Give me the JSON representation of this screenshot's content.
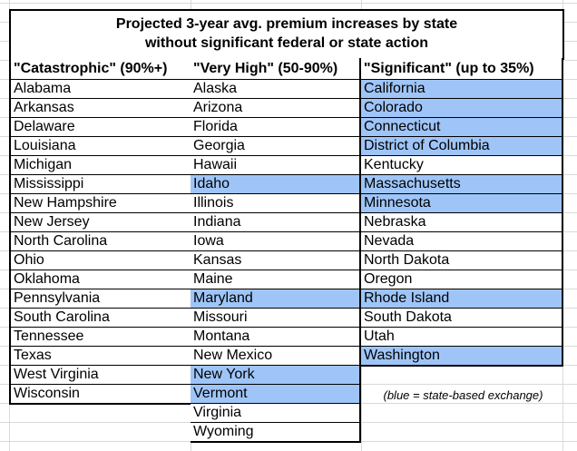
{
  "title_line1": "Projected 3-year avg. premium increases by state",
  "title_line2": "without significant federal or state action",
  "highlight_color": "#9fc5f8",
  "columns": [
    {
      "header": "\"Catastrophic\" (90%+)",
      "states": [
        {
          "name": "Alabama",
          "blue": false
        },
        {
          "name": "Arkansas",
          "blue": false
        },
        {
          "name": "Delaware",
          "blue": false
        },
        {
          "name": "Louisiana",
          "blue": false
        },
        {
          "name": "Michigan",
          "blue": false
        },
        {
          "name": "Mississippi",
          "blue": false
        },
        {
          "name": "New Hampshire",
          "blue": false
        },
        {
          "name": "New Jersey",
          "blue": false
        },
        {
          "name": "North Carolina",
          "blue": false
        },
        {
          "name": "Ohio",
          "blue": false
        },
        {
          "name": "Oklahoma",
          "blue": false
        },
        {
          "name": "Pennsylvania",
          "blue": false
        },
        {
          "name": "South Carolina",
          "blue": false
        },
        {
          "name": "Tennessee",
          "blue": false
        },
        {
          "name": "Texas",
          "blue": false
        },
        {
          "name": "West Virginia",
          "blue": false
        },
        {
          "name": "Wisconsin",
          "blue": false
        }
      ]
    },
    {
      "header": "\"Very High\" (50-90%)",
      "states": [
        {
          "name": "Alaska",
          "blue": false
        },
        {
          "name": "Arizona",
          "blue": false
        },
        {
          "name": "Florida",
          "blue": false
        },
        {
          "name": "Georgia",
          "blue": false
        },
        {
          "name": "Hawaii",
          "blue": false
        },
        {
          "name": "Idaho",
          "blue": true
        },
        {
          "name": "Illinois",
          "blue": false
        },
        {
          "name": "Indiana",
          "blue": false
        },
        {
          "name": "Iowa",
          "blue": false
        },
        {
          "name": "Kansas",
          "blue": false
        },
        {
          "name": "Maine",
          "blue": false
        },
        {
          "name": "Maryland",
          "blue": true
        },
        {
          "name": "Missouri",
          "blue": false
        },
        {
          "name": "Montana",
          "blue": false
        },
        {
          "name": "New Mexico",
          "blue": false
        },
        {
          "name": "New York",
          "blue": true
        },
        {
          "name": "Vermont",
          "blue": true
        },
        {
          "name": "Virginia",
          "blue": false
        },
        {
          "name": "Wyoming",
          "blue": false
        }
      ]
    },
    {
      "header": "\"Significant\" (up to 35%)",
      "states": [
        {
          "name": "California",
          "blue": true
        },
        {
          "name": "Colorado",
          "blue": true
        },
        {
          "name": "Connecticut",
          "blue": true
        },
        {
          "name": "District of Columbia",
          "blue": true
        },
        {
          "name": "Kentucky",
          "blue": false
        },
        {
          "name": "Massachusetts",
          "blue": true
        },
        {
          "name": "Minnesota",
          "blue": true
        },
        {
          "name": "Nebraska",
          "blue": false
        },
        {
          "name": "Nevada",
          "blue": false
        },
        {
          "name": "North Dakota",
          "blue": false
        },
        {
          "name": "Oregon",
          "blue": false
        },
        {
          "name": "Rhode Island",
          "blue": true
        },
        {
          "name": "South Dakota",
          "blue": false
        },
        {
          "name": "Utah",
          "blue": false
        },
        {
          "name": "Washington",
          "blue": true
        }
      ]
    }
  ],
  "note": "(blue = state-based exchange)"
}
